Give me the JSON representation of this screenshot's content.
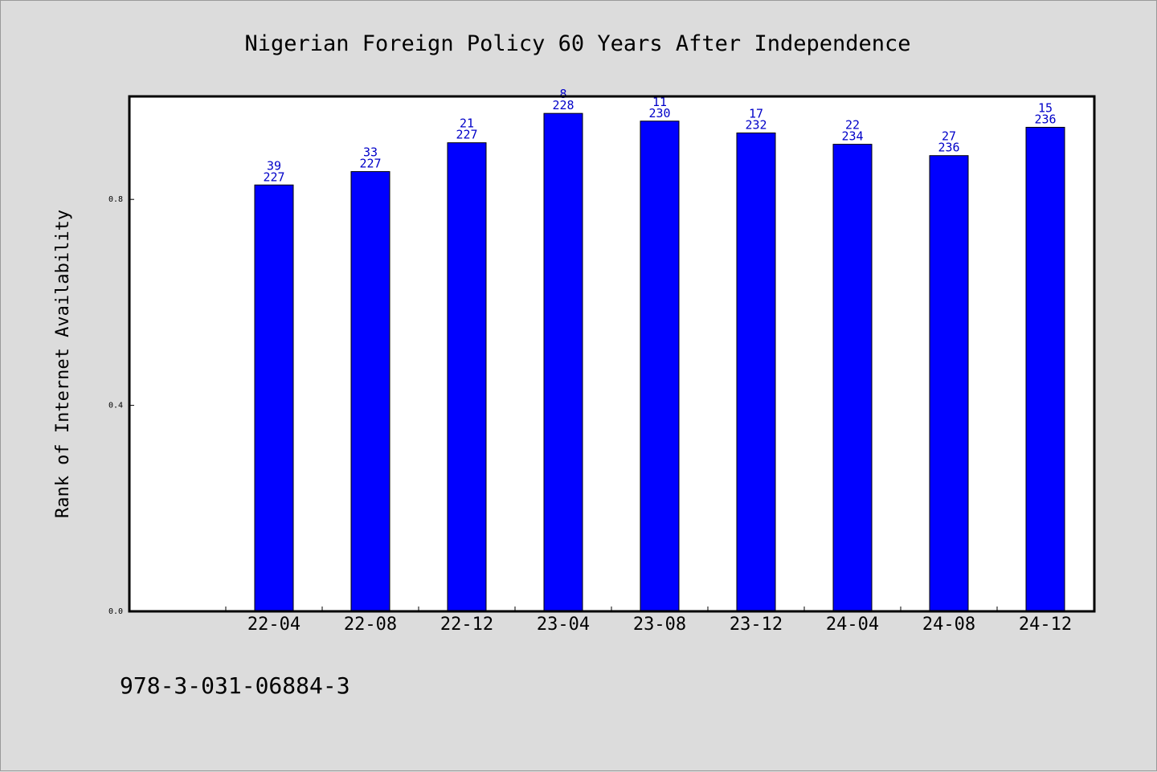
{
  "chart_data": {
    "type": "bar",
    "title": "Nigerian Foreign Policy 60 Years After Independence",
    "xlabel": "",
    "ylabel": "Rank of Internet Availability",
    "categories": [
      "22-04",
      "22-08",
      "22-12",
      "23-04",
      "23-08",
      "23-12",
      "24-04",
      "24-08",
      "24-12"
    ],
    "values": [
      0.828,
      0.854,
      0.91,
      0.967,
      0.952,
      0.929,
      0.907,
      0.885,
      0.94
    ],
    "labels_top": [
      "39",
      "33",
      "21",
      "8",
      "11",
      "17",
      "22",
      "27",
      "15"
    ],
    "labels_bottom": [
      "227",
      "227",
      "227",
      "228",
      "230",
      "232",
      "234",
      "236",
      "236"
    ],
    "yticks": [
      "0.0",
      "0.4",
      "0.8"
    ],
    "ylim": [
      0,
      1.0
    ],
    "grid": false,
    "colors": {
      "bar": "#0000ff",
      "bar_edge": "#000000",
      "label": "#0000c8",
      "background": "#dcdcdc",
      "plot_bg": "#ffffff"
    }
  },
  "footer": {
    "isbn": "978-3-031-06884-3"
  }
}
